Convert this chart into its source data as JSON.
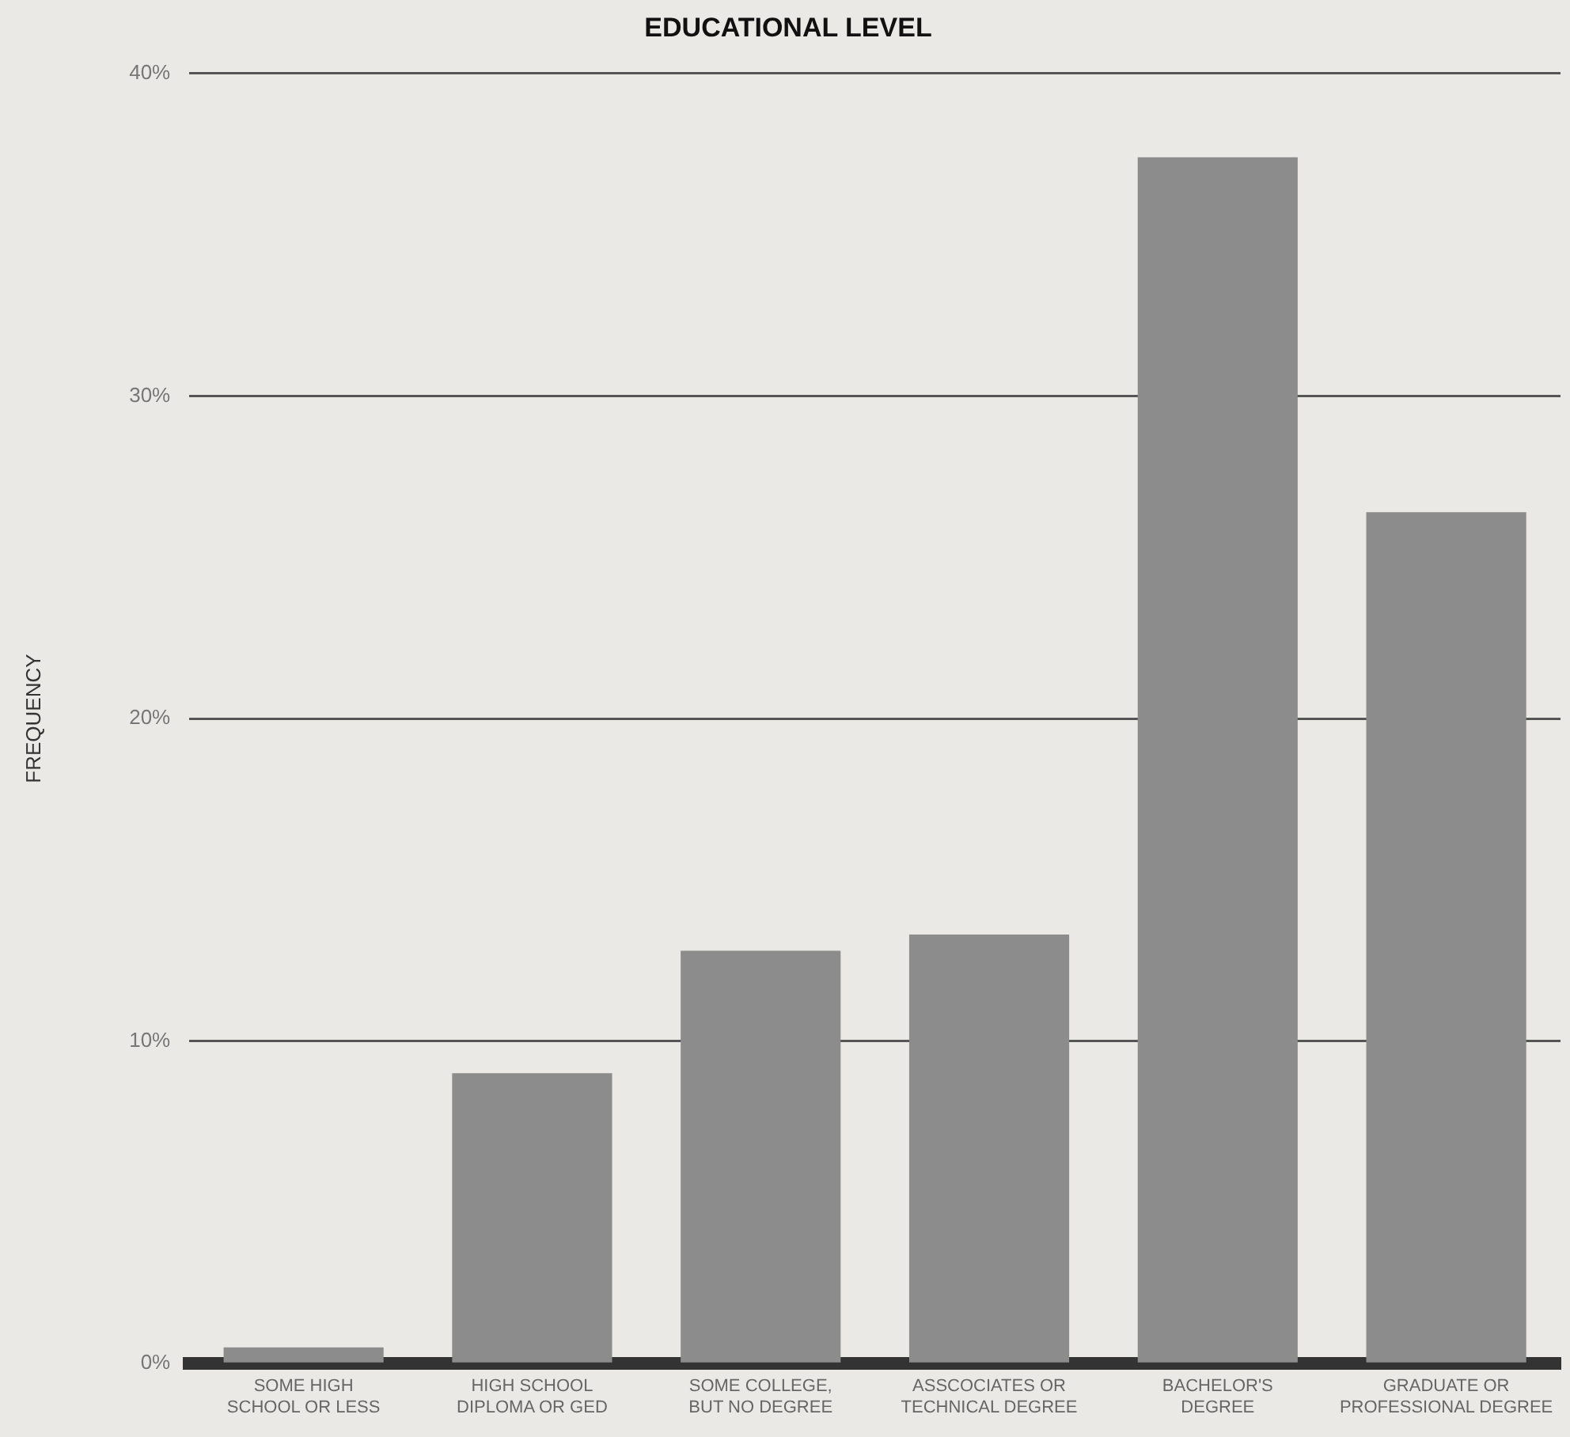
{
  "chart_data": {
    "type": "bar",
    "title": "EDUCATIONAL LEVEL",
    "ylabel": "FREQUENCY",
    "categories": [
      "SOME HIGH\nSCHOOL OR LESS",
      "HIGH SCHOOL\nDIPLOMA OR GED",
      "SOME COLLEGE,\nBUT NO DEGREE",
      "ASSCOCIATES OR\nTECHNICAL DEGREE",
      "BACHELOR'S\nDEGREE",
      "GRADUATE OR\nPROFESSIONAL DEGREE"
    ],
    "values": [
      0.5,
      9,
      12.8,
      13.3,
      37.4,
      26.4
    ],
    "color": "#8c8c8c",
    "ylim": [
      0,
      40
    ],
    "yticks": [
      {
        "value": 0,
        "label": "0%"
      },
      {
        "value": 10,
        "label": "10%"
      },
      {
        "value": 20,
        "label": "20%"
      },
      {
        "value": 30,
        "label": "30%"
      },
      {
        "value": 40,
        "label": "40%"
      }
    ],
    "grid": "y"
  }
}
